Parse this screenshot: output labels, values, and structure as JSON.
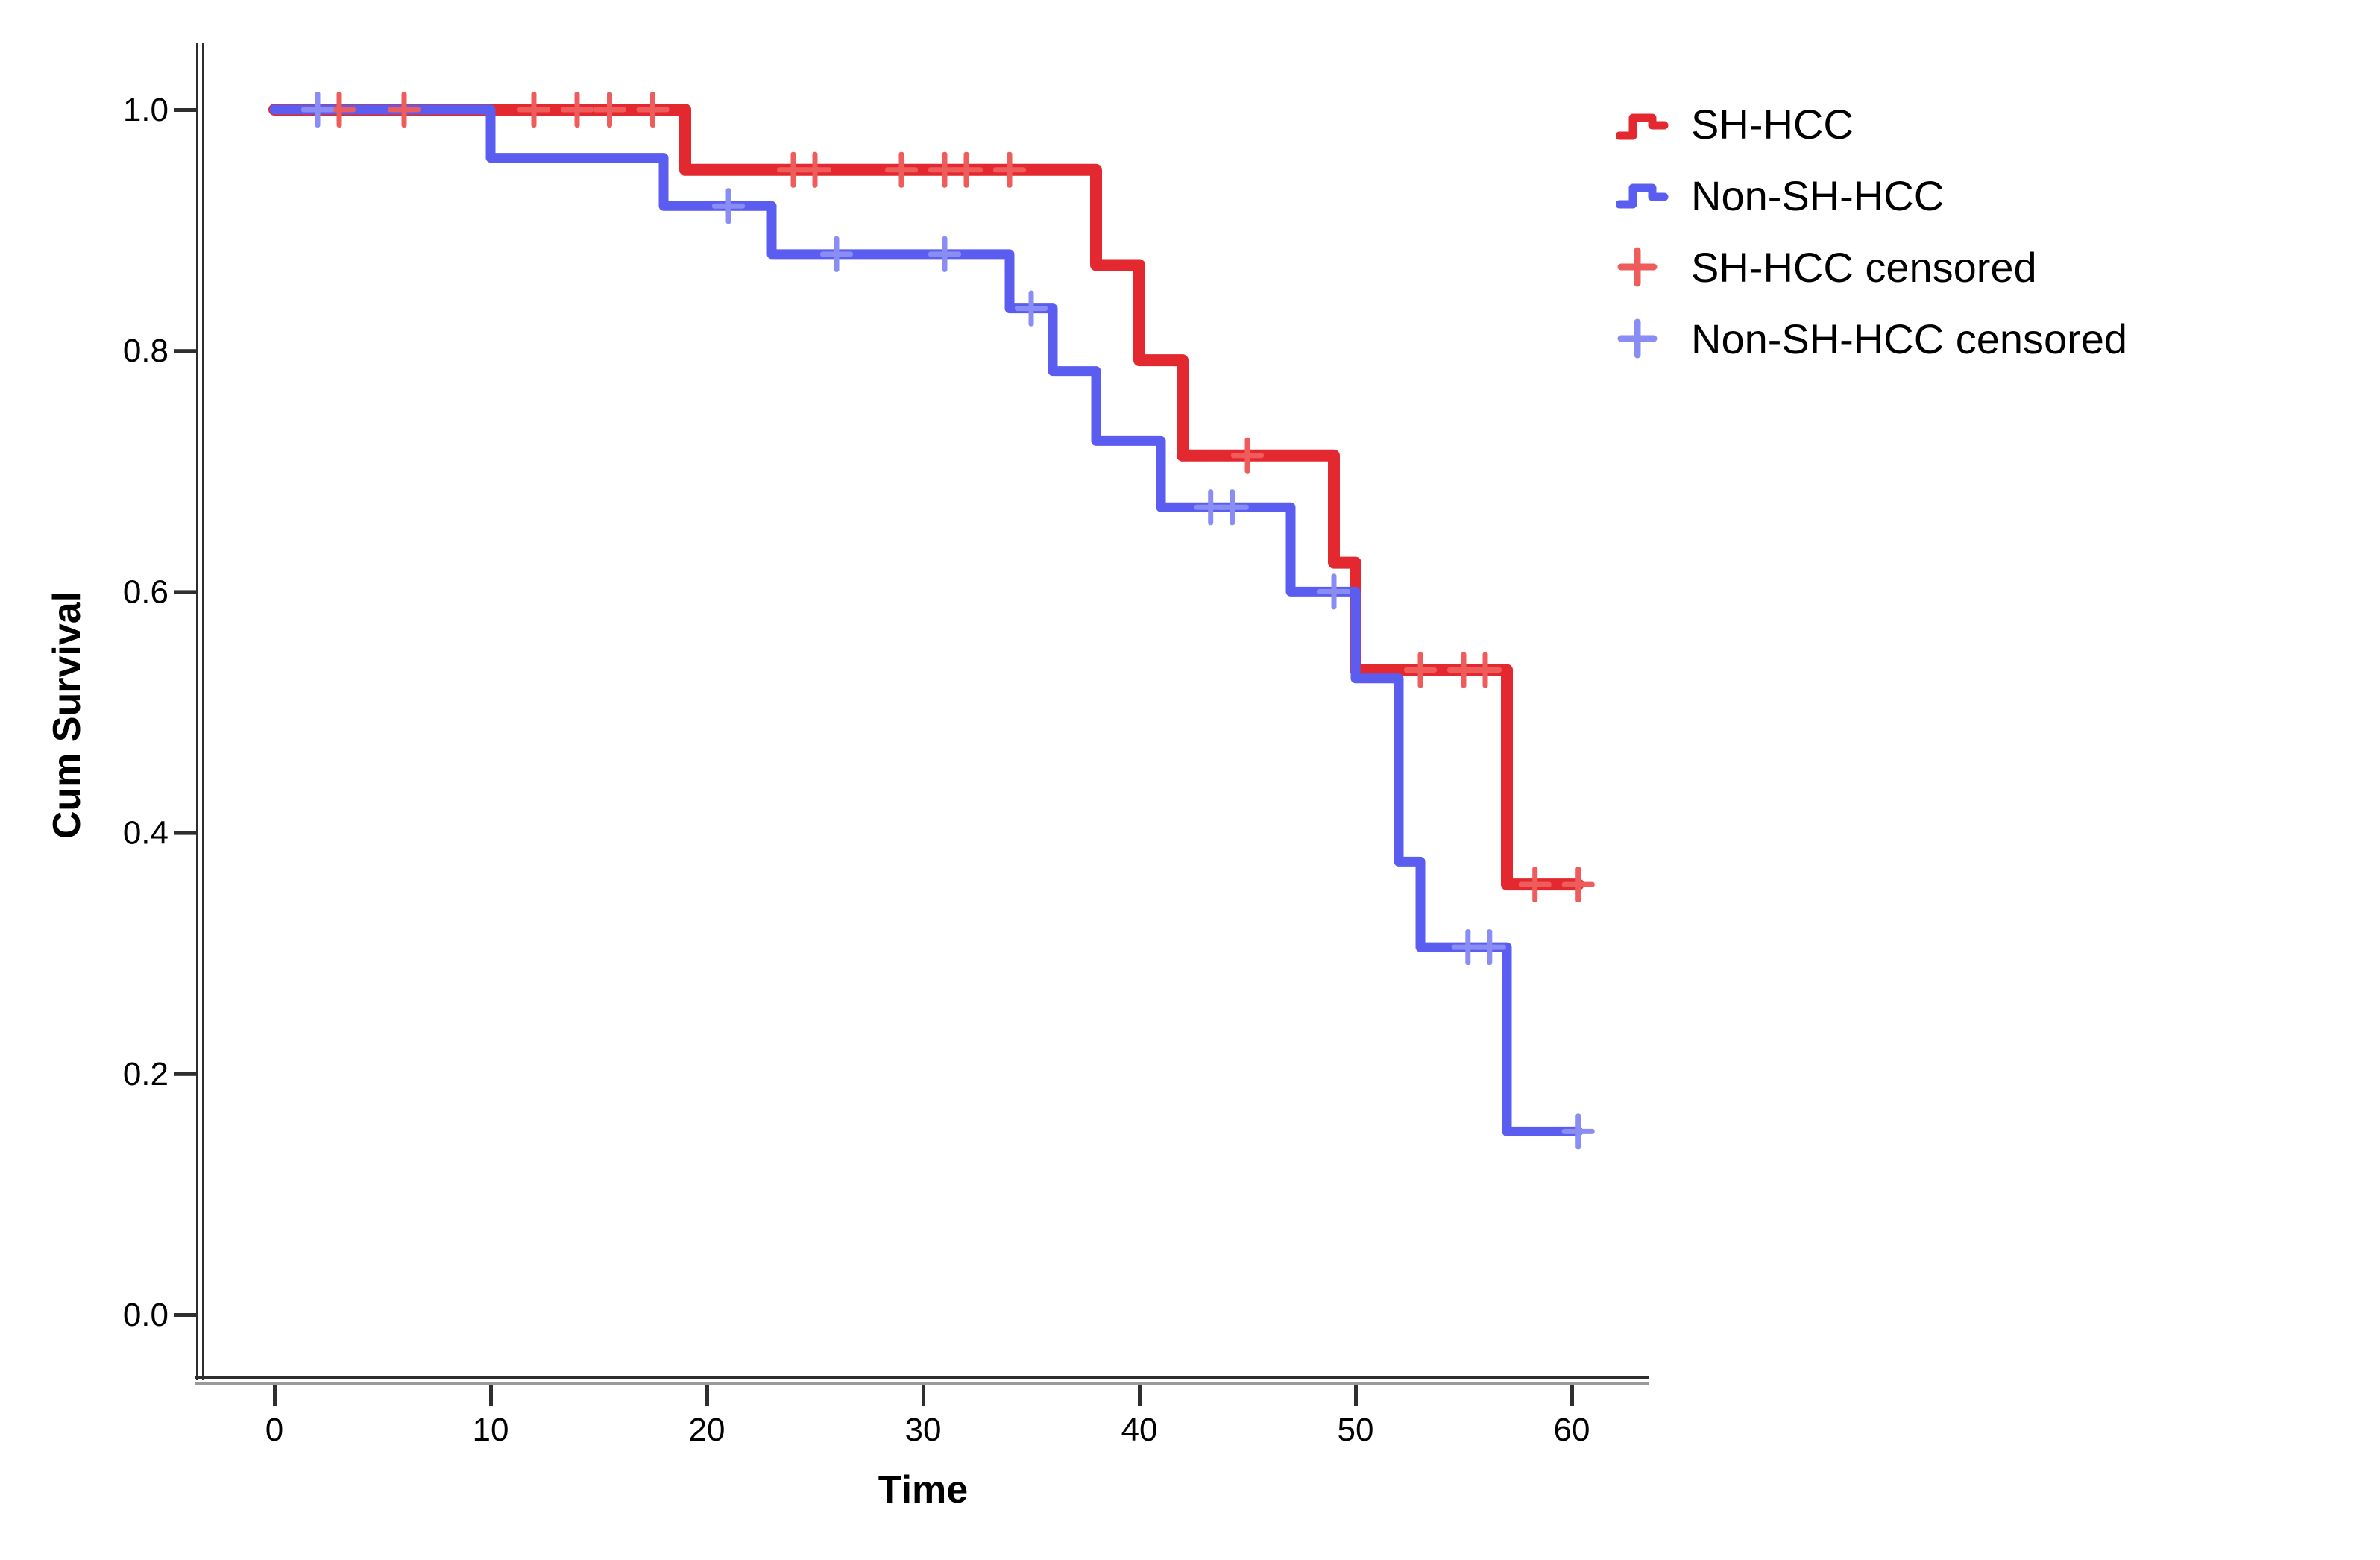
{
  "chart_data": {
    "type": "line",
    "subtype": "kaplan-meier-step-plot",
    "title": "",
    "xlabel": "Time",
    "ylabel": "Cum Survival",
    "xticks": [
      0,
      10,
      20,
      30,
      40,
      50,
      60
    ],
    "yticks": [
      "0.0",
      "0.2",
      "0.4",
      "0.6",
      "0.8",
      "1.0"
    ],
    "xlim": [
      0,
      63
    ],
    "ylim": [
      0.0,
      1.0
    ],
    "grid": false,
    "legend_position": "top-right",
    "series": [
      {
        "name": "SH-HCC",
        "color": "#e3292f",
        "censor_color": "#ef5c5c",
        "start": [
          0,
          1.0
        ],
        "end_time": 60.3,
        "events": [
          [
            19,
            0.95
          ],
          [
            38,
            0.871
          ],
          [
            40,
            0.792
          ],
          [
            42,
            0.713
          ],
          [
            49,
            0.624
          ],
          [
            50,
            0.535
          ],
          [
            57,
            0.357
          ]
        ],
        "censored": [
          [
            3,
            1.0
          ],
          [
            6,
            1.0
          ],
          [
            12,
            1.0
          ],
          [
            14,
            1.0
          ],
          [
            15.5,
            1.0
          ],
          [
            17.5,
            1.0
          ],
          [
            24,
            0.95
          ],
          [
            25,
            0.95
          ],
          [
            29,
            0.95
          ],
          [
            31,
            0.95
          ],
          [
            32,
            0.95
          ],
          [
            34,
            0.95
          ],
          [
            45,
            0.713
          ],
          [
            53,
            0.535
          ],
          [
            55,
            0.535
          ],
          [
            56,
            0.535
          ],
          [
            58.3,
            0.357
          ],
          [
            60.3,
            0.357
          ]
        ]
      },
      {
        "name": "Non-SH-HCC",
        "color": "#5b5df0",
        "censor_color": "#8a8df4",
        "start": [
          0,
          1.0
        ],
        "end_time": 60.3,
        "events": [
          [
            10,
            0.96
          ],
          [
            18,
            0.92
          ],
          [
            23,
            0.88
          ],
          [
            34,
            0.835
          ],
          [
            36,
            0.783
          ],
          [
            38,
            0.725
          ],
          [
            41,
            0.67
          ],
          [
            47,
            0.6
          ],
          [
            50,
            0.528
          ],
          [
            52,
            0.376
          ],
          [
            53,
            0.305
          ],
          [
            57,
            0.152
          ]
        ],
        "censored": [
          [
            2,
            1.0
          ],
          [
            21,
            0.92
          ],
          [
            26,
            0.88
          ],
          [
            31,
            0.88
          ],
          [
            35,
            0.835
          ],
          [
            43.3,
            0.67
          ],
          [
            44.3,
            0.67
          ],
          [
            49,
            0.6
          ],
          [
            55.2,
            0.305
          ],
          [
            56.2,
            0.305
          ],
          [
            60.3,
            0.152
          ]
        ]
      }
    ],
    "legend": [
      {
        "label": "SH-HCC",
        "symbol": "step-line",
        "series": 0
      },
      {
        "label": "Non-SH-HCC",
        "symbol": "step-line",
        "series": 1
      },
      {
        "label": "SH-HCC censored",
        "symbol": "plus",
        "series": 0
      },
      {
        "label": "Non-SH-HCC censored",
        "symbol": "plus",
        "series": 1
      }
    ],
    "axis_color": "#2e2e2e",
    "axis_shadow_color": "#9a9a9a",
    "tick_label_color": "#000000"
  }
}
